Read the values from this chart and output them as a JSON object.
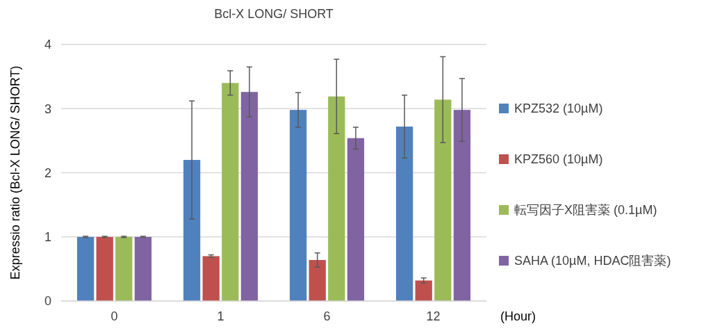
{
  "chart_data": {
    "type": "bar",
    "title": "Bcl-X LONG/ SHORT",
    "xlabel": "(Hour)",
    "ylabel": "Expressio ratio (Bcl-X LONG/ SHORT)",
    "categories": [
      "0",
      "1",
      "6",
      "12"
    ],
    "series": [
      {
        "name": "KPZ532 (10µM)",
        "color": "#4f81bd",
        "values": [
          1,
          2.2,
          2.98,
          2.72
        ],
        "errors": [
          0.01,
          0.92,
          0.27,
          0.49
        ]
      },
      {
        "name": "KPZ560 (10µM)",
        "color": "#c0504d",
        "values": [
          1,
          0.7,
          0.64,
          0.32
        ],
        "errors": [
          0.01,
          0.02,
          0.11,
          0.04
        ]
      },
      {
        "name": "転写因子X阻害薬 (0.1µM)",
        "color": "#9bbb59",
        "values": [
          1,
          3.4,
          3.19,
          3.14
        ],
        "errors": [
          0.01,
          0.19,
          0.58,
          0.67
        ]
      },
      {
        "name": "SAHA (10µM, HDAC阻害薬)",
        "color": "#8064a2",
        "values": [
          1,
          3.26,
          2.54,
          2.98
        ],
        "errors": [
          0.01,
          0.39,
          0.17,
          0.49
        ]
      }
    ],
    "ylim": [
      0,
      4
    ],
    "yticks": [
      0,
      1,
      2,
      3,
      4
    ],
    "grid": "y",
    "legend": "right"
  }
}
